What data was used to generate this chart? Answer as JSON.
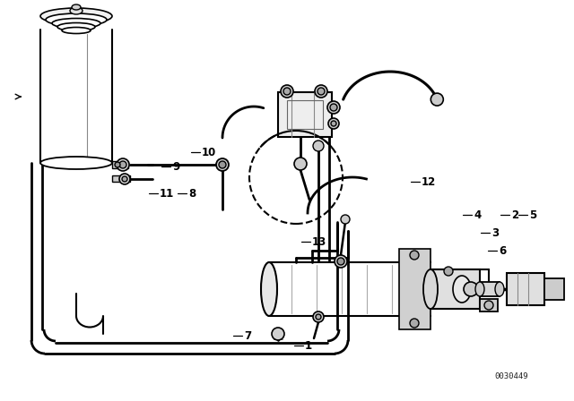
{
  "bg_color": "#ffffff",
  "line_color": "#000000",
  "fig_width": 6.4,
  "fig_height": 4.48,
  "dpi": 100,
  "diagram_code": "0030449"
}
